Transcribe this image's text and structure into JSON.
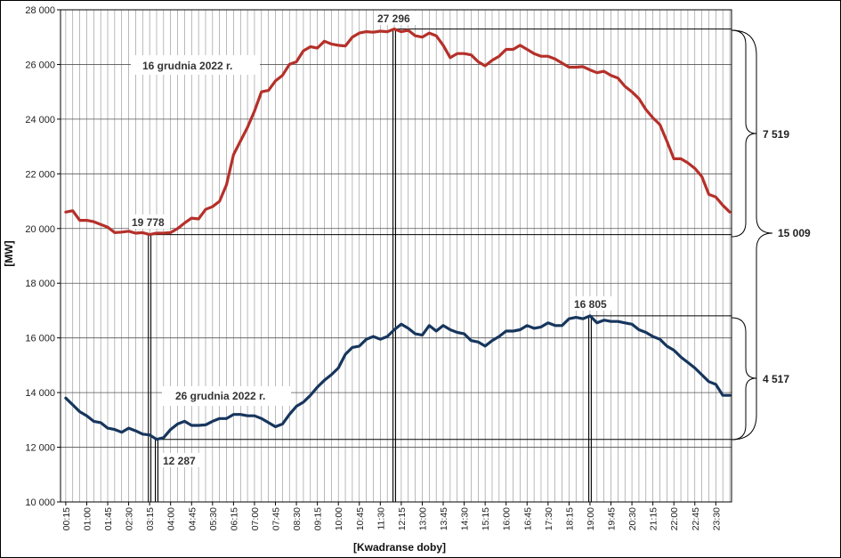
{
  "chart_data": {
    "type": "line",
    "ylabel": "[MW]",
    "xlabel": "[Kwadranse doby]",
    "ylim": [
      10000,
      28000
    ],
    "y_ticks": [
      10000,
      12000,
      14000,
      16000,
      18000,
      20000,
      22000,
      24000,
      26000,
      28000
    ],
    "y_tick_labels": [
      "10 000",
      "12 000",
      "14 000",
      "16 000",
      "18 000",
      "20 000",
      "22 000",
      "24 000",
      "26 000",
      "28 000"
    ],
    "x_labels": [
      "00:15",
      "01:00",
      "01:45",
      "02:30",
      "03:15",
      "04:00",
      "04:45",
      "05:30",
      "06:15",
      "07:00",
      "07:45",
      "08:30",
      "09:15",
      "10:00",
      "10:45",
      "11:30",
      "12:15",
      "13:00",
      "13:45",
      "14:30",
      "15:15",
      "16:00",
      "16:45",
      "17:30",
      "18:15",
      "19:00",
      "19:45",
      "20:30",
      "21:15",
      "22:00",
      "22:45",
      "23:30"
    ],
    "grid": "vertical every quarter-hour, horizontal at each y tick",
    "series": [
      {
        "name": "16 grudnia 2022 r.",
        "color": "#b5302a",
        "values": [
          20600,
          20650,
          20300,
          20300,
          20250,
          20150,
          20050,
          19850,
          19870,
          19900,
          19830,
          19850,
          19778,
          19830,
          19830,
          19850,
          20000,
          20200,
          20380,
          20350,
          20700,
          20800,
          21000,
          21600,
          22700,
          23200,
          23700,
          24300,
          25000,
          25050,
          25400,
          25600,
          26000,
          26100,
          26500,
          26650,
          26600,
          26850,
          26750,
          26700,
          26680,
          27000,
          27150,
          27200,
          27180,
          27220,
          27200,
          27296,
          27200,
          27250,
          27050,
          27000,
          27150,
          27050,
          26700,
          26250,
          26400,
          26400,
          26350,
          26100,
          25950,
          26150,
          26300,
          26550,
          26550,
          26700,
          26550,
          26400,
          26300,
          26300,
          26200,
          26050,
          25900,
          25900,
          25920,
          25800,
          25700,
          25750,
          25600,
          25500,
          25200,
          25000,
          24750,
          24350,
          24050,
          23800,
          23200,
          22550,
          22550,
          22400,
          22200,
          21900,
          21250,
          21150,
          20850,
          20600
        ]
      },
      {
        "name": "26 grudnia 2022 r.",
        "color": "#17365d",
        "values": [
          13800,
          13550,
          13300,
          13150,
          12950,
          12900,
          12700,
          12650,
          12550,
          12700,
          12600,
          12480,
          12450,
          12287,
          12350,
          12650,
          12850,
          12950,
          12800,
          12800,
          12820,
          12950,
          13050,
          13050,
          13200,
          13200,
          13150,
          13150,
          13050,
          12900,
          12750,
          12850,
          13200,
          13500,
          13650,
          13900,
          14200,
          14450,
          14650,
          14900,
          15400,
          15650,
          15700,
          15950,
          16050,
          15950,
          16050,
          16300,
          16500,
          16350,
          16150,
          16100,
          16450,
          16250,
          16450,
          16300,
          16200,
          16150,
          15900,
          15850,
          15700,
          15900,
          16050,
          16250,
          16250,
          16300,
          16450,
          16350,
          16400,
          16550,
          16450,
          16450,
          16700,
          16750,
          16700,
          16805,
          16550,
          16650,
          16600,
          16600,
          16550,
          16500,
          16300,
          16200,
          16050,
          15950,
          15700,
          15550,
          15300,
          15100,
          14900,
          14650,
          14400,
          14300,
          13900,
          13900
        ]
      }
    ],
    "annotations": {
      "series1_label": "16 grudnia 2022 r.",
      "series2_label": "26 grudnia 2022 r.",
      "max1": "27 296",
      "min1": "19 778",
      "max2": "16 805",
      "min2": "12 287",
      "range1": "7 519",
      "range2": "4 517",
      "range_total": "15 009"
    }
  }
}
